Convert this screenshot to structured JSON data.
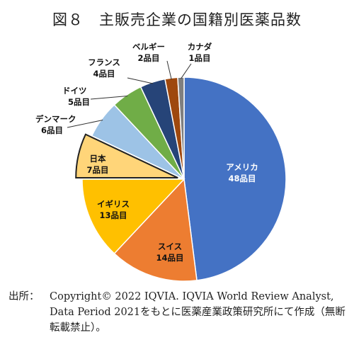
{
  "title": "図８　主販売企業の国籍別医薬品数",
  "chart_data": {
    "type": "pie",
    "title": "図８　主販売企業の国籍別医薬品数",
    "unit": "品目",
    "slices": [
      {
        "name": "アメリカ",
        "value": 48,
        "label": "48品目",
        "color": "#4472c4"
      },
      {
        "name": "スイス",
        "value": 14,
        "label": "14品目",
        "color": "#ed7d31"
      },
      {
        "name": "イギリス",
        "value": 13,
        "label": "13品目",
        "color": "#ffc000"
      },
      {
        "name": "日本",
        "value": 7,
        "label": "7品目",
        "color": "#ffd579",
        "exploded": true
      },
      {
        "name": "デンマーク",
        "value": 6,
        "label": "6品目",
        "color": "#9dc3e6"
      },
      {
        "name": "ドイツ",
        "value": 5,
        "label": "5品目",
        "color": "#70ad47"
      },
      {
        "name": "フランス",
        "value": 4,
        "label": "4品目",
        "color": "#264478"
      },
      {
        "name": "ベルギー",
        "value": 2,
        "label": "2品目",
        "color": "#9e480e"
      },
      {
        "name": "カナダ",
        "value": 1,
        "label": "1品目",
        "color": "#7f7f7f"
      }
    ]
  },
  "source": {
    "prefix": "出所：",
    "text": "Copyright© 2022 IQVIA. IQVIA World Review Analyst, Data Period 2021をもとに医薬産業政策研究所にて作成（無断転載禁止）。"
  }
}
